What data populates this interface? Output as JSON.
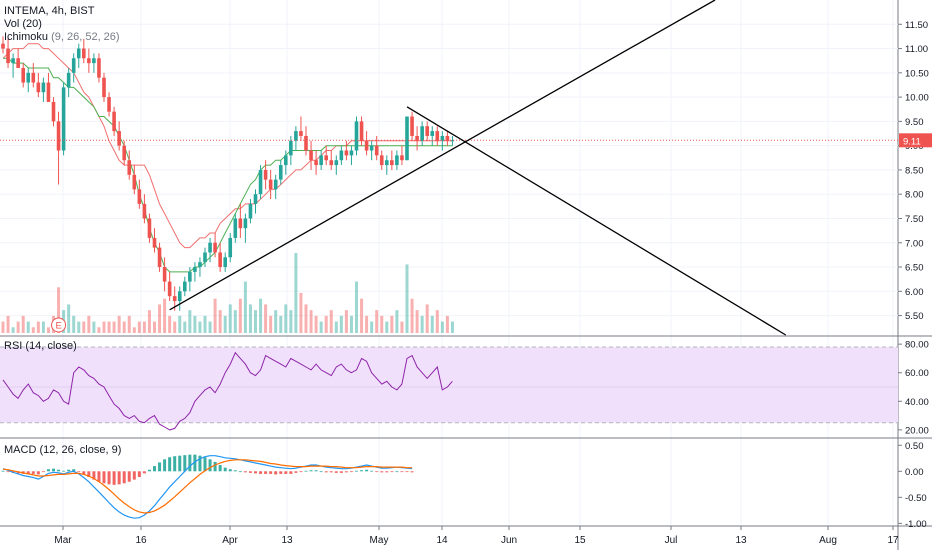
{
  "header": {
    "symbol_line": "INTEMA, 4h, BIST",
    "vol_name": "Vol",
    "vol_params": "(20)",
    "ichimoku_name": "Ichimoku",
    "ichimoku_params": "(9, 26, 52, 26)"
  },
  "rsi_panel": {
    "name": "RSI",
    "params": "(14, close)"
  },
  "macd_panel": {
    "name": "MACD",
    "params": "(12, 26, close, 9)"
  },
  "earnings_marker": "E",
  "price_tag": "9.11",
  "colors": {
    "up": "#26a69a",
    "down": "#ef5350",
    "kijun": "#4caf50",
    "senkou": "#f06e6e",
    "rsi": "#8e24aa",
    "rsi_band": "#f0e0fb",
    "macd": "#2196f3",
    "signal": "#ff6d00",
    "last_price": "#ef5350",
    "trendline": "#000000"
  },
  "chart_data": [
    {
      "type": "candlestick",
      "title": "INTEMA, 4h, BIST",
      "y_ticks": [
        "5.50",
        "6.00",
        "6.50",
        "7.00",
        "7.50",
        "8.00",
        "8.50",
        "9.00",
        "9.50",
        "10.00",
        "10.50",
        "11.00",
        "11.50"
      ],
      "ylim": [
        5.1,
        12.0
      ],
      "x_ticks": [
        "Mar",
        "16",
        "Apr",
        "13",
        "May",
        "14",
        "Jun",
        "15",
        "Jul",
        "13",
        "Aug",
        "17"
      ],
      "last_price": 9.11,
      "candles_ohlc": [
        [
          11.1,
          11.25,
          10.9,
          11.0
        ],
        [
          11.0,
          11.2,
          10.6,
          10.7
        ],
        [
          10.7,
          10.9,
          10.4,
          10.8
        ],
        [
          10.8,
          11.0,
          10.6,
          10.6
        ],
        [
          10.6,
          10.7,
          10.2,
          10.3
        ],
        [
          10.3,
          10.6,
          10.1,
          10.5
        ],
        [
          10.5,
          10.7,
          10.2,
          10.3
        ],
        [
          10.3,
          10.5,
          10.0,
          10.1
        ],
        [
          10.1,
          10.4,
          9.9,
          10.3
        ],
        [
          10.3,
          10.5,
          10.0,
          9.9
        ],
        [
          9.9,
          10.0,
          9.4,
          9.5
        ],
        [
          9.5,
          9.7,
          8.2,
          8.9
        ],
        [
          8.9,
          10.3,
          8.8,
          10.2
        ],
        [
          10.2,
          10.6,
          10.0,
          10.5
        ],
        [
          10.5,
          10.9,
          10.3,
          10.8
        ],
        [
          10.8,
          11.1,
          10.6,
          11.0
        ],
        [
          11.0,
          11.2,
          10.7,
          10.8
        ],
        [
          10.8,
          11.0,
          10.5,
          10.7
        ],
        [
          10.7,
          10.9,
          10.5,
          10.8
        ],
        [
          10.8,
          10.9,
          10.3,
          10.4
        ],
        [
          10.4,
          10.5,
          9.9,
          10.0
        ],
        [
          10.0,
          10.1,
          9.6,
          9.7
        ],
        [
          9.7,
          9.8,
          9.2,
          9.3
        ],
        [
          9.3,
          9.5,
          8.9,
          9.0
        ],
        [
          9.0,
          9.1,
          8.6,
          8.7
        ],
        [
          8.7,
          8.9,
          8.3,
          8.4
        ],
        [
          8.4,
          8.6,
          8.0,
          8.1
        ],
        [
          8.1,
          8.3,
          7.7,
          7.8
        ],
        [
          7.8,
          8.0,
          7.4,
          7.5
        ],
        [
          7.5,
          7.6,
          7.0,
          7.1
        ],
        [
          7.1,
          7.3,
          6.8,
          6.9
        ],
        [
          6.9,
          7.0,
          6.4,
          6.5
        ],
        [
          6.5,
          6.7,
          6.0,
          6.2
        ],
        [
          6.2,
          6.4,
          5.8,
          5.9
        ],
        [
          5.9,
          6.1,
          5.6,
          5.8
        ],
        [
          5.8,
          6.1,
          5.6,
          6.0
        ],
        [
          6.0,
          6.3,
          5.9,
          6.2
        ],
        [
          6.2,
          6.5,
          6.0,
          6.4
        ],
        [
          6.4,
          6.6,
          6.2,
          6.5
        ],
        [
          6.5,
          6.7,
          6.3,
          6.6
        ],
        [
          6.6,
          6.9,
          6.5,
          6.8
        ],
        [
          6.8,
          7.1,
          6.6,
          7.0
        ],
        [
          7.0,
          7.2,
          6.7,
          6.8
        ],
        [
          6.8,
          7.0,
          6.4,
          6.5
        ],
        [
          6.5,
          6.8,
          6.4,
          6.7
        ],
        [
          6.7,
          7.2,
          6.6,
          7.1
        ],
        [
          7.1,
          7.6,
          7.0,
          7.5
        ],
        [
          7.5,
          7.8,
          7.1,
          7.3
        ],
        [
          7.3,
          7.6,
          7.0,
          7.5
        ],
        [
          7.5,
          7.9,
          7.4,
          7.8
        ],
        [
          7.8,
          8.1,
          7.6,
          8.0
        ],
        [
          8.0,
          8.6,
          7.9,
          8.5
        ],
        [
          8.5,
          8.7,
          8.1,
          8.3
        ],
        [
          8.3,
          8.5,
          7.9,
          8.1
        ],
        [
          8.1,
          8.4,
          7.9,
          8.3
        ],
        [
          8.3,
          8.7,
          8.2,
          8.6
        ],
        [
          8.6,
          8.9,
          8.4,
          8.8
        ],
        [
          8.8,
          9.2,
          8.6,
          9.1
        ],
        [
          9.1,
          9.4,
          8.9,
          9.3
        ],
        [
          9.3,
          9.6,
          9.1,
          9.2
        ],
        [
          9.2,
          9.4,
          8.8,
          8.9
        ],
        [
          8.9,
          9.1,
          8.5,
          8.7
        ],
        [
          8.7,
          8.9,
          8.4,
          8.6
        ],
        [
          8.6,
          8.9,
          8.5,
          8.8
        ],
        [
          8.8,
          9.0,
          8.6,
          8.7
        ],
        [
          8.7,
          8.9,
          8.5,
          8.6
        ],
        [
          8.6,
          8.8,
          8.4,
          8.7
        ],
        [
          8.7,
          9.0,
          8.6,
          8.9
        ],
        [
          8.9,
          9.1,
          8.7,
          8.8
        ],
        [
          8.8,
          9.0,
          8.6,
          8.9
        ],
        [
          8.9,
          9.6,
          8.8,
          9.5
        ],
        [
          9.5,
          9.6,
          9.0,
          9.1
        ],
        [
          9.1,
          9.3,
          8.8,
          8.9
        ],
        [
          8.9,
          9.1,
          8.7,
          9.0
        ],
        [
          9.0,
          9.2,
          8.7,
          8.8
        ],
        [
          8.8,
          8.9,
          8.5,
          8.6
        ],
        [
          8.6,
          8.8,
          8.4,
          8.7
        ],
        [
          8.7,
          8.9,
          8.5,
          8.6
        ],
        [
          8.6,
          8.9,
          8.5,
          8.8
        ],
        [
          8.8,
          9.0,
          8.6,
          8.7
        ],
        [
          8.7,
          9.6,
          8.7,
          9.6
        ],
        [
          9.6,
          9.7,
          9.1,
          9.2
        ],
        [
          9.2,
          9.4,
          8.9,
          9.1
        ],
        [
          9.1,
          9.5,
          9.0,
          9.4
        ],
        [
          9.4,
          9.5,
          9.1,
          9.2
        ],
        [
          9.2,
          9.4,
          9.0,
          9.3
        ],
        [
          9.3,
          9.4,
          9.0,
          9.1
        ],
        [
          9.1,
          9.3,
          8.9,
          9.2
        ],
        [
          9.2,
          9.3,
          9.0,
          9.1
        ],
        [
          9.1,
          9.2,
          9.0,
          9.11
        ]
      ],
      "tenkan_sen": [
        10.8,
        10.7,
        10.6,
        10.5,
        10.5,
        10.4,
        10.4,
        10.6,
        10.7,
        10.6,
        10.6,
        10.6,
        10.4,
        10.3,
        10.2,
        10.2,
        10.2,
        10.1,
        10.1,
        10.0,
        10.0,
        9.9,
        9.9,
        9.8,
        9.7,
        9.5,
        9.3,
        9.0,
        8.6,
        8.3,
        7.9,
        7.6,
        7.3,
        7.1,
        6.9,
        6.8,
        6.7,
        6.6,
        6.5,
        6.5,
        6.5,
        6.7,
        6.9,
        7.1,
        7.4,
        7.6,
        7.9,
        8.1,
        8.3,
        8.4,
        8.6,
        8.7,
        8.7,
        8.8,
        8.8,
        8.8,
        8.8,
        8.8,
        8.9,
        8.9,
        8.9,
        8.9,
        9.0,
        9.0,
        9.0,
        9.0,
        9.0,
        9.0,
        9.0,
        9.0,
        9.0,
        9.1,
        9.1,
        9.1,
        9.1,
        9.1,
        9.1,
        9.1,
        9.1,
        9.1,
        9.1,
        9.1,
        9.1,
        9.1,
        9.1,
        9.1,
        9.1,
        9.1,
        9.1,
        9.1
      ],
      "kijun_sen": [
        10.8,
        10.8,
        10.7,
        10.7,
        10.7,
        10.6,
        10.6,
        10.6,
        10.6,
        10.6,
        10.4,
        10.4,
        10.3,
        10.2,
        10.2,
        10.1,
        10.0,
        9.9,
        9.8,
        9.6,
        9.6,
        9.5,
        9.4,
        9.2,
        9.0,
        8.7,
        8.4,
        8.0,
        7.7,
        7.3,
        7.0,
        6.8,
        6.5,
        6.4,
        6.4,
        6.4,
        6.4,
        6.4,
        6.5,
        6.5,
        6.6,
        6.7,
        6.8,
        7.0,
        7.2,
        7.4,
        7.6,
        7.8,
        8.0,
        8.2,
        8.3,
        8.5,
        8.6,
        8.6,
        8.7,
        8.7,
        8.8,
        8.9,
        8.9,
        8.9,
        8.9,
        8.9,
        8.9,
        8.9,
        9.0,
        9.0,
        9.0,
        9.0,
        9.0,
        9.0,
        9.0,
        9.0,
        9.0,
        9.0,
        9.0,
        9.0,
        9.0,
        9.0,
        9.0,
        9.0,
        9.0,
        9.0,
        9.0,
        9.0,
        9.0,
        9.0,
        9.0,
        9.0,
        9.0,
        9.0
      ],
      "senkou_span": [
        10.8,
        10.9,
        11.0,
        11.0,
        11.0,
        11.1,
        11.1,
        11.1,
        11.0,
        11.0,
        10.9,
        10.8,
        10.7,
        10.6,
        10.5,
        10.3,
        10.1,
        10.0,
        9.8,
        9.6,
        9.4,
        9.1,
        8.9,
        8.7,
        8.6,
        8.6,
        8.6,
        8.6,
        8.6,
        8.4,
        8.1,
        7.8,
        7.6,
        7.4,
        7.2,
        7.0,
        6.9,
        6.9,
        7.0,
        7.1,
        7.1,
        7.2,
        7.2,
        7.4,
        7.5,
        7.6,
        7.7,
        7.7,
        7.8,
        7.8,
        7.8,
        7.9,
        8.0,
        8.1,
        8.1,
        8.2,
        8.3,
        8.4,
        8.5,
        8.5,
        8.6,
        8.7,
        8.7,
        8.8,
        8.9,
        8.9,
        9.0,
        9.0,
        9.0,
        9.1,
        9.1,
        9.1,
        9.1,
        9.1,
        9.1,
        9.1,
        9.1,
        9.1,
        9.1,
        9.1,
        9.1,
        9.1,
        9.1,
        9.1,
        9.1,
        9.1,
        9.1,
        9.1,
        9.1,
        9.1
      ],
      "volume": [
        2,
        3,
        1,
        2,
        3,
        2,
        1,
        2,
        2,
        1,
        3,
        8,
        4,
        5,
        3,
        2,
        2,
        3,
        2,
        1,
        2,
        2,
        2,
        3,
        2,
        3,
        1,
        2,
        2,
        4,
        2,
        5,
        6,
        3,
        2,
        3,
        2,
        4,
        3,
        2,
        3,
        2,
        6,
        4,
        3,
        5,
        4,
        6,
        9,
        5,
        4,
        6,
        5,
        3,
        4,
        3,
        5,
        4,
        14,
        7,
        5,
        4,
        3,
        2,
        3,
        4,
        2,
        3,
        4,
        3,
        9,
        6,
        3,
        2,
        4,
        3,
        2,
        3,
        4,
        2,
        12,
        6,
        4,
        3,
        5,
        3,
        4,
        2,
        3,
        2
      ],
      "trendlines": [
        {
          "name": "ascending-support",
          "from": [
            33,
            5.62
          ],
          "to": [
            141,
            12.0
          ]
        },
        {
          "name": "descending-resistance",
          "from": [
            80,
            9.8
          ],
          "to": [
            155,
            5.1
          ]
        }
      ]
    },
    {
      "type": "line",
      "title": "RSI (14, close)",
      "y_ticks": [
        "20.00",
        "40.00",
        "60.00",
        "80.00"
      ],
      "ylim": [
        15,
        85
      ],
      "band": [
        25,
        78
      ],
      "values": [
        55,
        50,
        45,
        42,
        48,
        52,
        46,
        44,
        40,
        42,
        48,
        46,
        40,
        38,
        60,
        64,
        62,
        58,
        56,
        52,
        50,
        44,
        38,
        35,
        30,
        28,
        30,
        26,
        25,
        28,
        30,
        24,
        22,
        20,
        21,
        26,
        28,
        32,
        40,
        44,
        48,
        50,
        46,
        52,
        60,
        66,
        74,
        70,
        66,
        60,
        58,
        62,
        72,
        70,
        68,
        66,
        64,
        70,
        68,
        66,
        64,
        62,
        66,
        62,
        60,
        58,
        64,
        66,
        62,
        60,
        62,
        70,
        68,
        60,
        56,
        52,
        54,
        50,
        48,
        52,
        70,
        72,
        64,
        60,
        56,
        60,
        64,
        48,
        50,
        54
      ]
    },
    {
      "type": "line",
      "title": "MACD (12, 26, close, 9)",
      "y_ticks": [
        "-1.00",
        "-0.50",
        "0.00",
        "0.50"
      ],
      "ylim": [
        -1.05,
        0.62
      ],
      "macd": [
        0.05,
        0.02,
        -0.02,
        -0.05,
        -0.08,
        -0.1,
        -0.12,
        -0.15,
        -0.1,
        -0.04,
        -0.02,
        -0.03,
        -0.05,
        -0.02,
        0.0,
        -0.05,
        -0.12,
        -0.2,
        -0.3,
        -0.4,
        -0.5,
        -0.6,
        -0.7,
        -0.78,
        -0.84,
        -0.88,
        -0.9,
        -0.89,
        -0.84,
        -0.76,
        -0.66,
        -0.54,
        -0.42,
        -0.3,
        -0.2,
        -0.1,
        0.0,
        0.1,
        0.18,
        0.24,
        0.28,
        0.3,
        0.3,
        0.28,
        0.26,
        0.25,
        0.24,
        0.22,
        0.2,
        0.18,
        0.16,
        0.14,
        0.12,
        0.1,
        0.08,
        0.07,
        0.06,
        0.05,
        0.06,
        0.08,
        0.1,
        0.12,
        0.12,
        0.1,
        0.08,
        0.07,
        0.06,
        0.05,
        0.05,
        0.06,
        0.08,
        0.1,
        0.12,
        0.1,
        0.08,
        0.06,
        0.06,
        0.07,
        0.08,
        0.07,
        0.06,
        0.05
      ],
      "signal": [
        0.04,
        0.03,
        0.01,
        -0.01,
        -0.03,
        -0.05,
        -0.07,
        -0.09,
        -0.09,
        -0.08,
        -0.07,
        -0.06,
        -0.06,
        -0.05,
        -0.04,
        -0.04,
        -0.06,
        -0.09,
        -0.14,
        -0.2,
        -0.27,
        -0.35,
        -0.44,
        -0.53,
        -0.61,
        -0.68,
        -0.74,
        -0.78,
        -0.8,
        -0.79,
        -0.76,
        -0.71,
        -0.65,
        -0.57,
        -0.49,
        -0.4,
        -0.31,
        -0.22,
        -0.14,
        -0.06,
        0.01,
        0.07,
        0.12,
        0.16,
        0.19,
        0.21,
        0.22,
        0.22,
        0.22,
        0.21,
        0.2,
        0.19,
        0.17,
        0.15,
        0.14,
        0.12,
        0.11,
        0.1,
        0.09,
        0.09,
        0.09,
        0.1,
        0.1,
        0.1,
        0.1,
        0.09,
        0.09,
        0.08,
        0.07,
        0.07,
        0.07,
        0.08,
        0.09,
        0.09,
        0.09,
        0.08,
        0.08,
        0.08,
        0.08,
        0.08,
        0.07,
        0.07
      ],
      "histogram": [
        0.01,
        -0.01,
        -0.03,
        -0.04,
        -0.05,
        -0.05,
        -0.05,
        -0.06,
        -0.01,
        0.04,
        0.05,
        0.03,
        0.01,
        0.03,
        0.04,
        -0.01,
        -0.06,
        -0.11,
        -0.16,
        -0.2,
        -0.23,
        -0.25,
        -0.26,
        -0.25,
        -0.23,
        -0.2,
        -0.16,
        -0.11,
        -0.04,
        0.03,
        0.1,
        0.17,
        0.23,
        0.27,
        0.29,
        0.3,
        0.31,
        0.32,
        0.32,
        0.3,
        0.27,
        0.23,
        0.18,
        0.12,
        0.07,
        0.04,
        0.02,
        0.0,
        -0.02,
        -0.03,
        -0.04,
        -0.05,
        -0.05,
        -0.05,
        -0.06,
        -0.05,
        -0.05,
        -0.05,
        -0.03,
        -0.01,
        0.01,
        0.02,
        0.02,
        0.0,
        -0.02,
        -0.02,
        -0.03,
        -0.03,
        -0.02,
        -0.01,
        0.01,
        0.02,
        0.03,
        0.01,
        -0.01,
        -0.02,
        -0.02,
        -0.01,
        0.0,
        -0.01,
        -0.01,
        -0.02
      ]
    }
  ]
}
